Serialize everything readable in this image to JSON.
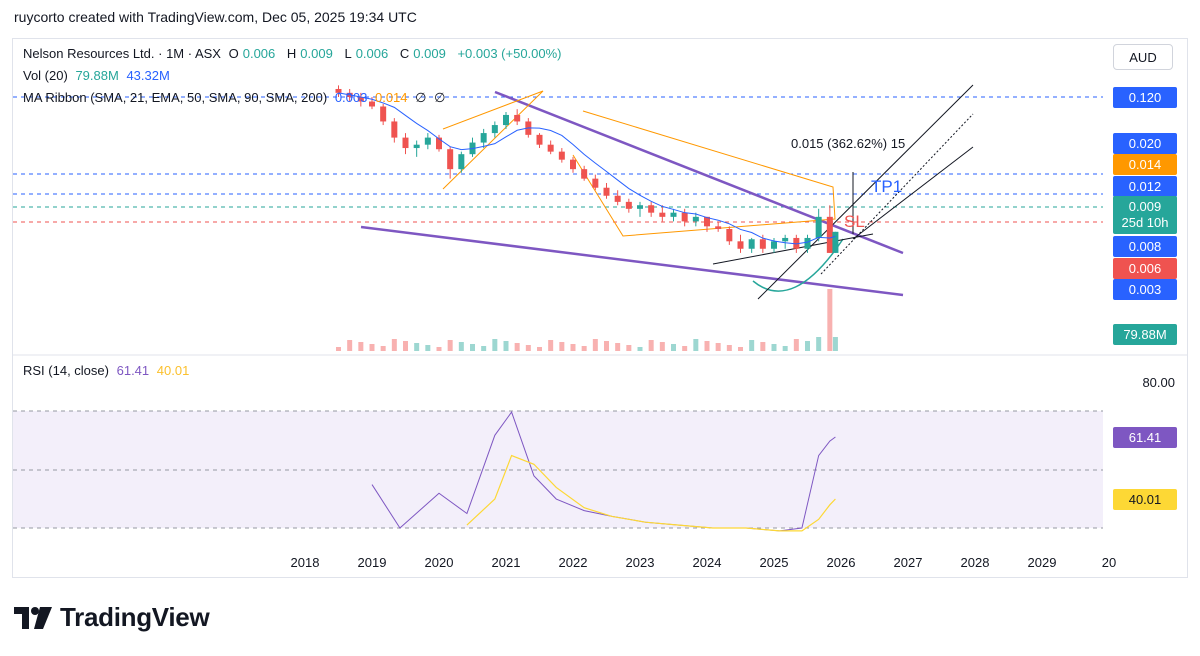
{
  "header": {
    "text": "ruycorto created with TradingView.com, Dec 05, 2025 19:34 UTC"
  },
  "currency_button": "AUD",
  "legend": {
    "title": "Nelson Resources Ltd. · 1M · ASX",
    "o_label": "O",
    "o_val": "0.006",
    "h_label": "H",
    "h_val": "0.009",
    "l_label": "L",
    "l_val": "0.006",
    "c_label": "C",
    "c_val": "0.009",
    "change": "+0.003 (+50.00%)",
    "vol_label": "Vol (20)",
    "vol_val1": "79.88M",
    "vol_val2": "43.32M",
    "ma_label": "MA Ribbon (SMA, 21, EMA, 50, SMA, 90, SMA, 200)",
    "ma_val1": "0.003",
    "ma_val2": "0.014",
    "ma_val3": "∅",
    "ma_val4": "∅",
    "rsi_label": "RSI (14, close)",
    "rsi_val1": "61.41",
    "rsi_val2": "40.01"
  },
  "price_labels": {
    "p120": "0.120",
    "p020": "0.020",
    "p014": "0.014",
    "p012": "0.012",
    "last": "0.009",
    "countdown": "25d 10h",
    "p008": "0.008",
    "p006": "0.006",
    "p003": "0.003",
    "vol": "79.88M",
    "rsi": "61.41",
    "rsi_ma": "40.01",
    "rsi80": "80.00"
  },
  "annotations": {
    "measure": "0.015 (362.62%) 15",
    "tp1": "TP1",
    "sl": "SL"
  },
  "colors": {
    "up": "#26a69a",
    "down": "#ef5350",
    "purple": "#7e57c2",
    "blue": "#2962ff",
    "orange": "#ff9800",
    "rsi_line": "#7e57c2",
    "rsi_ma": "#fdd835"
  },
  "footer": {
    "brand": "TradingView"
  },
  "chart_data": {
    "type": "candlestick",
    "symbol": "Nelson Resources Ltd.",
    "timeframe": "1M",
    "x_ticks": [
      "2018",
      "2019",
      "2020",
      "2021",
      "2022",
      "2023",
      "2024",
      "2025",
      "2026",
      "2027",
      "2028",
      "2029",
      "20"
    ],
    "price_scale_labels": [
      "0.120",
      "0.020",
      "0.014",
      "0.012",
      "0.009",
      "0.008",
      "0.006",
      "0.003"
    ],
    "candles": [
      {
        "t": "2018-07",
        "o": 0.14,
        "h": 0.15,
        "l": 0.12,
        "c": 0.13
      },
      {
        "t": "2018-09",
        "o": 0.13,
        "h": 0.14,
        "l": 0.11,
        "c": 0.12
      },
      {
        "t": "2018-11",
        "o": 0.12,
        "h": 0.13,
        "l": 0.1,
        "c": 0.11
      },
      {
        "t": "2019-01",
        "o": 0.11,
        "h": 0.12,
        "l": 0.095,
        "c": 0.1
      },
      {
        "t": "2019-03",
        "o": 0.1,
        "h": 0.105,
        "l": 0.07,
        "c": 0.075
      },
      {
        "t": "2019-05",
        "o": 0.075,
        "h": 0.08,
        "l": 0.05,
        "c": 0.055
      },
      {
        "t": "2019-07",
        "o": 0.055,
        "h": 0.06,
        "l": 0.04,
        "c": 0.045
      },
      {
        "t": "2019-09",
        "o": 0.045,
        "h": 0.052,
        "l": 0.038,
        "c": 0.048
      },
      {
        "t": "2019-11",
        "o": 0.048,
        "h": 0.06,
        "l": 0.044,
        "c": 0.055
      },
      {
        "t": "2020-01",
        "o": 0.055,
        "h": 0.058,
        "l": 0.042,
        "c": 0.044
      },
      {
        "t": "2020-03",
        "o": 0.044,
        "h": 0.046,
        "l": 0.025,
        "c": 0.03
      },
      {
        "t": "2020-05",
        "o": 0.03,
        "h": 0.042,
        "l": 0.028,
        "c": 0.04
      },
      {
        "t": "2020-07",
        "o": 0.04,
        "h": 0.055,
        "l": 0.038,
        "c": 0.05
      },
      {
        "t": "2020-09",
        "o": 0.05,
        "h": 0.065,
        "l": 0.045,
        "c": 0.06
      },
      {
        "t": "2020-11",
        "o": 0.06,
        "h": 0.075,
        "l": 0.055,
        "c": 0.07
      },
      {
        "t": "2021-01",
        "o": 0.07,
        "h": 0.09,
        "l": 0.065,
        "c": 0.085
      },
      {
        "t": "2021-03",
        "o": 0.085,
        "h": 0.095,
        "l": 0.07,
        "c": 0.075
      },
      {
        "t": "2021-05",
        "o": 0.075,
        "h": 0.08,
        "l": 0.055,
        "c": 0.058
      },
      {
        "t": "2021-07",
        "o": 0.058,
        "h": 0.06,
        "l": 0.045,
        "c": 0.048
      },
      {
        "t": "2021-09",
        "o": 0.048,
        "h": 0.052,
        "l": 0.04,
        "c": 0.042
      },
      {
        "t": "2021-11",
        "o": 0.042,
        "h": 0.045,
        "l": 0.034,
        "c": 0.036
      },
      {
        "t": "2022-01",
        "o": 0.036,
        "h": 0.038,
        "l": 0.028,
        "c": 0.03
      },
      {
        "t": "2022-03",
        "o": 0.03,
        "h": 0.032,
        "l": 0.024,
        "c": 0.025
      },
      {
        "t": "2022-05",
        "o": 0.025,
        "h": 0.027,
        "l": 0.02,
        "c": 0.021
      },
      {
        "t": "2022-07",
        "o": 0.021,
        "h": 0.023,
        "l": 0.017,
        "c": 0.018
      },
      {
        "t": "2022-09",
        "o": 0.018,
        "h": 0.02,
        "l": 0.015,
        "c": 0.016
      },
      {
        "t": "2022-11",
        "o": 0.016,
        "h": 0.017,
        "l": 0.013,
        "c": 0.014
      },
      {
        "t": "2023-01",
        "o": 0.014,
        "h": 0.016,
        "l": 0.012,
        "c": 0.015
      },
      {
        "t": "2023-03",
        "o": 0.015,
        "h": 0.016,
        "l": 0.012,
        "c": 0.013
      },
      {
        "t": "2023-05",
        "o": 0.013,
        "h": 0.015,
        "l": 0.011,
        "c": 0.012
      },
      {
        "t": "2023-07",
        "o": 0.012,
        "h": 0.014,
        "l": 0.011,
        "c": 0.013
      },
      {
        "t": "2023-09",
        "o": 0.013,
        "h": 0.014,
        "l": 0.01,
        "c": 0.011
      },
      {
        "t": "2023-11",
        "o": 0.011,
        "h": 0.013,
        "l": 0.01,
        "c": 0.012
      },
      {
        "t": "2024-01",
        "o": 0.012,
        "h": 0.012,
        "l": 0.009,
        "c": 0.01
      },
      {
        "t": "2024-03",
        "o": 0.01,
        "h": 0.011,
        "l": 0.009,
        "c": 0.0095
      },
      {
        "t": "2024-05",
        "o": 0.0095,
        "h": 0.01,
        "l": 0.007,
        "c": 0.0075
      },
      {
        "t": "2024-07",
        "o": 0.0075,
        "h": 0.0085,
        "l": 0.006,
        "c": 0.0065
      },
      {
        "t": "2024-09",
        "o": 0.0065,
        "h": 0.008,
        "l": 0.006,
        "c": 0.0078
      },
      {
        "t": "2024-11",
        "o": 0.0078,
        "h": 0.0085,
        "l": 0.006,
        "c": 0.0065
      },
      {
        "t": "2025-01",
        "o": 0.0065,
        "h": 0.008,
        "l": 0.006,
        "c": 0.0075
      },
      {
        "t": "2025-03",
        "o": 0.0075,
        "h": 0.0085,
        "l": 0.0065,
        "c": 0.008
      },
      {
        "t": "2025-05",
        "o": 0.008,
        "h": 0.0085,
        "l": 0.006,
        "c": 0.0065
      },
      {
        "t": "2025-07",
        "o": 0.0065,
        "h": 0.0085,
        "l": 0.006,
        "c": 0.008
      },
      {
        "t": "2025-09",
        "o": 0.008,
        "h": 0.014,
        "l": 0.0075,
        "c": 0.012
      },
      {
        "t": "2025-11",
        "o": 0.012,
        "h": 0.015,
        "l": 0.006,
        "c": 0.006
      },
      {
        "t": "2025-12",
        "o": 0.006,
        "h": 0.009,
        "l": 0.006,
        "c": 0.009
      }
    ],
    "volume_label": "Vol (20)",
    "rsi": {
      "label": "RSI (14, close)",
      "levels": [
        80,
        61.41,
        40.01
      ],
      "x": [
        "2019-01",
        "2019-06",
        "2020-01",
        "2020-06",
        "2020-11",
        "2021-02",
        "2021-06",
        "2021-10",
        "2022-03",
        "2022-08",
        "2023-02",
        "2023-08",
        "2024-02",
        "2024-08",
        "2025-02",
        "2025-06",
        "2025-09",
        "2025-11",
        "2025-12"
      ],
      "rsi_values": [
        45,
        30,
        42,
        35,
        62,
        70,
        48,
        40,
        36,
        34,
        32,
        31,
        30,
        30,
        29,
        30,
        55,
        60,
        61.41
      ],
      "ma_values": [
        null,
        null,
        null,
        31,
        40,
        55,
        52,
        44,
        37,
        34,
        32,
        31,
        30,
        30,
        29,
        29,
        33,
        38,
        40.01
      ]
    }
  }
}
